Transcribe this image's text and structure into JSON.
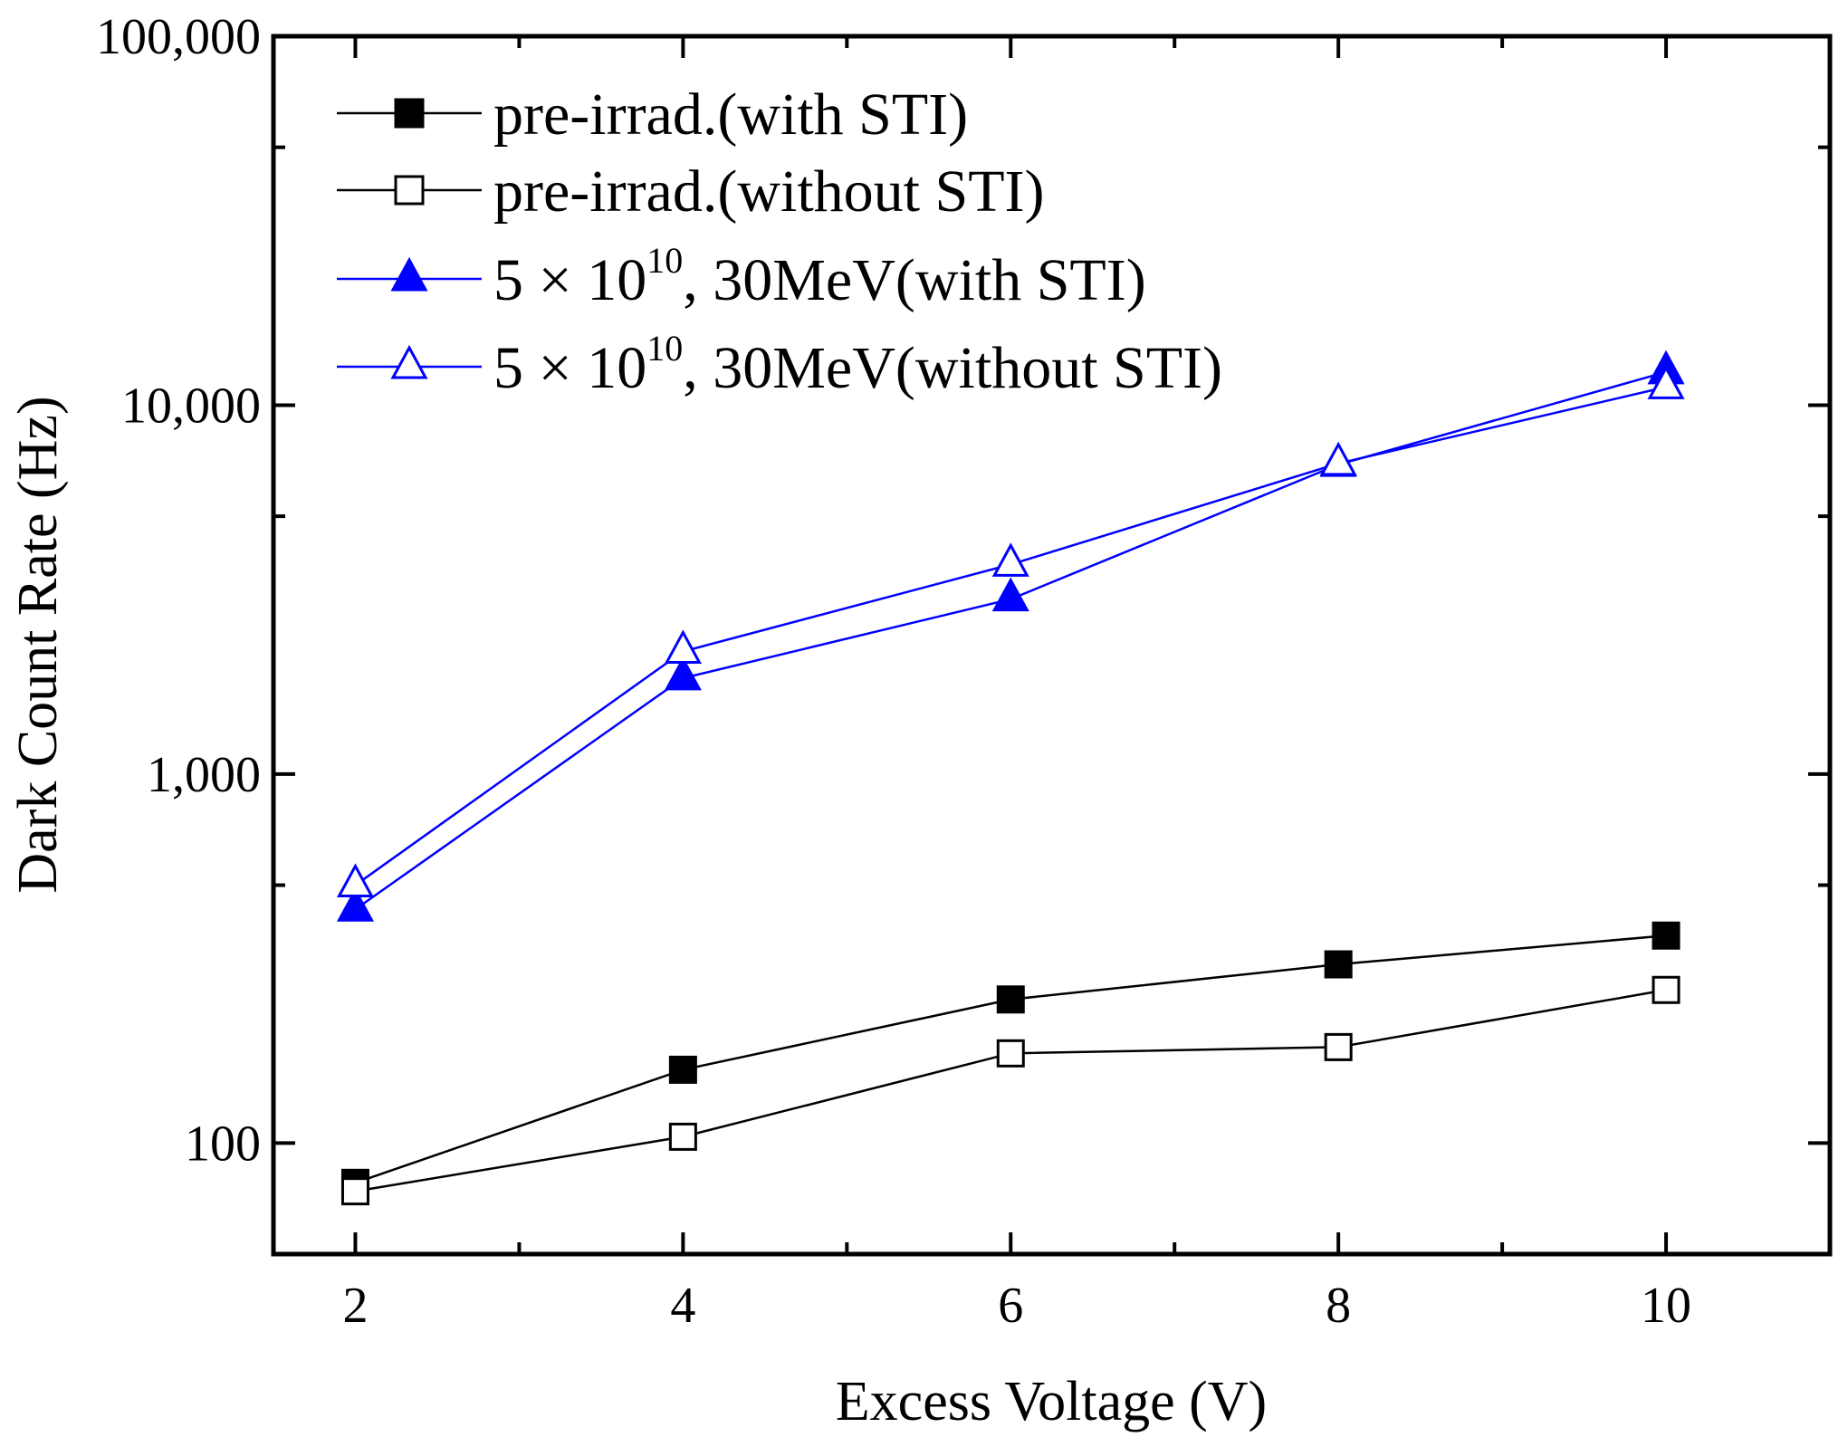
{
  "chart_data": {
    "type": "line",
    "title": "",
    "xlabel": "Excess Voltage (V)",
    "ylabel": "Dark Count Rate (Hz)",
    "yscale": "log",
    "xlim": [
      1.5,
      11
    ],
    "ylim": [
      50,
      100000
    ],
    "x_major_ticks": [
      2,
      4,
      6,
      8,
      10
    ],
    "x_tick_labels": [
      "2",
      "4",
      "6",
      "8",
      "10"
    ],
    "y_major_ticks": [
      100,
      1000,
      10000,
      100000
    ],
    "y_tick_labels": [
      "100",
      "1,000",
      "10,000",
      "100,000"
    ],
    "grid": false,
    "legend_position": "top-left",
    "series": [
      {
        "name": "pre-irrad.(with STI)",
        "legend_text": "pre-irrad.(with STI)",
        "color": "#000000",
        "marker": "square",
        "filled": true,
        "x": [
          2,
          4,
          6,
          8,
          10
        ],
        "values": [
          78,
          158,
          245,
          305,
          365
        ]
      },
      {
        "name": "pre-irrad.(without STI)",
        "legend_text": "pre-irrad.(without STI)",
        "color": "#000000",
        "marker": "square",
        "filled": false,
        "x": [
          2,
          4,
          6,
          8,
          10
        ],
        "values": [
          74,
          104,
          175,
          182,
          260
        ]
      },
      {
        "name": "5 × 10^10, 30MeV(with STI)",
        "legend_prefix": "5 × 10",
        "legend_sup": "10",
        "legend_suffix": ", 30MeV(with STI)",
        "color": "#0000ff",
        "marker": "triangle",
        "filled": true,
        "x": [
          2,
          4,
          6,
          8,
          10
        ],
        "values": [
          430,
          1820,
          2980,
          6900,
          12300
        ]
      },
      {
        "name": "5 × 10^10, 30MeV(without STI)",
        "legend_prefix": "5 × 10",
        "legend_sup": "10",
        "legend_suffix": ", 30MeV(without STI)",
        "color": "#0000ff",
        "marker": "triangle",
        "filled": false,
        "x": [
          2,
          4,
          6,
          8,
          10
        ],
        "values": [
          500,
          2150,
          3700,
          6950,
          11200
        ]
      }
    ]
  }
}
